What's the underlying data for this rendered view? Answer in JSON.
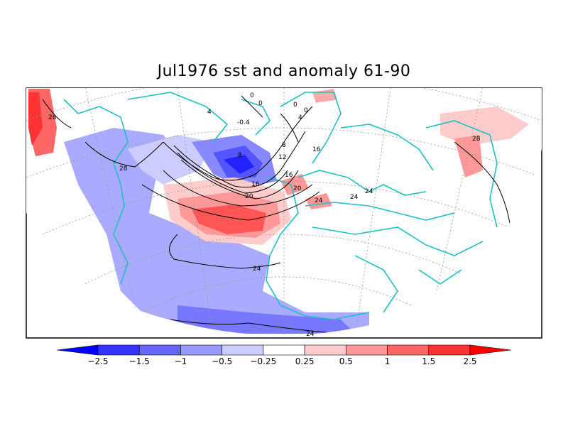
{
  "title": "Jul1976 sst and anomaly 61-90",
  "colors": {
    "land": "#ffffff",
    "coast": "#20c0c0",
    "contour": "#000000",
    "grid": "#888888"
  },
  "colorbar": {
    "labels": [
      "-2.5",
      "-1.5",
      "-1",
      "-0.5",
      "-0.25",
      "0.25",
      "0.5",
      "1",
      "1.5",
      "2.5"
    ],
    "colors": [
      "#0000ff",
      "#3333ff",
      "#6666ff",
      "#9999ff",
      "#ccccff",
      "#ffffff",
      "#ffcccc",
      "#ff9999",
      "#ff6666",
      "#ff3333",
      "#ff0000"
    ]
  },
  "contour_labels": [
    "28",
    "28",
    "4",
    "0",
    "0",
    "0",
    "-0.4",
    "0",
    "4",
    "8",
    "8",
    "12",
    "16",
    "16",
    "16",
    "20",
    "20",
    "24",
    "24",
    "24",
    "24",
    "24",
    "28"
  ]
}
